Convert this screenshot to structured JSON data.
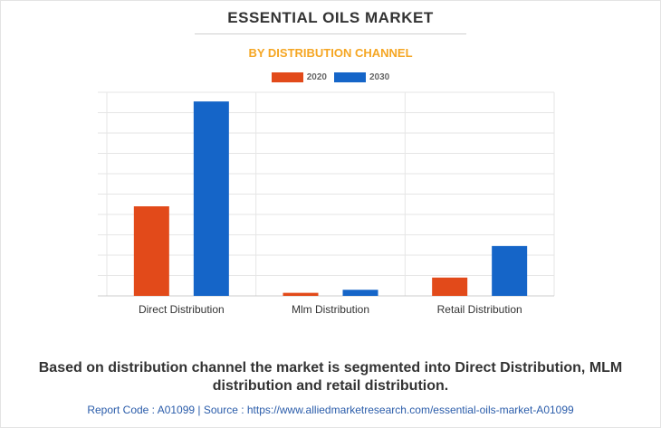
{
  "title": "ESSENTIAL OILS MARKET",
  "subtitle": "BY DISTRIBUTION CHANNEL",
  "colors": {
    "series_2020": "#e24a1a",
    "series_2030": "#1565c8",
    "subtitle": "#f5a623",
    "footer": "#2a5caa"
  },
  "chart_data": {
    "type": "bar",
    "categories": [
      "Direct Distribution",
      "Mlm Distribution",
      "Retail Distribution"
    ],
    "series": [
      {
        "name": "2020",
        "values": [
          4.4,
          0.15,
          0.9
        ]
      },
      {
        "name": "2030",
        "values": [
          9.55,
          0.3,
          2.45
        ]
      }
    ],
    "ylim": [
      0,
      10
    ],
    "grid": true,
    "legend_position": "top-center"
  },
  "caption": "Based on distribution channel the market is segmented into Direct Distribution, MLM distribution and retail distribution.",
  "footer": "Report Code : A01099  |  Source : https://www.alliedmarketresearch.com/essential-oils-market-A01099"
}
